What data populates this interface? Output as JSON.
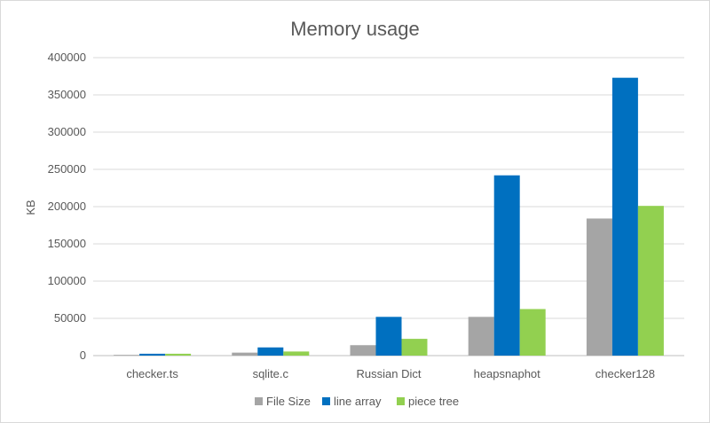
{
  "chart_data": {
    "type": "bar",
    "title": "Memory usage",
    "xlabel": "",
    "ylabel": "KB",
    "ylim": [
      0,
      400000
    ],
    "yticks": [
      0,
      50000,
      100000,
      150000,
      200000,
      250000,
      300000,
      350000,
      400000
    ],
    "ytick_labels": [
      "0",
      "50000",
      "100000",
      "150000",
      "200000",
      "250000",
      "300000",
      "350000",
      "400000"
    ],
    "grid": true,
    "legend_position": "bottom",
    "categories": [
      "checker.ts",
      "sqlite.c",
      "Russian Dict",
      "heapsnaphot",
      "checker128"
    ],
    "series": [
      {
        "name": "File Size",
        "color": "#a5a5a5",
        "values": [
          1000,
          4000,
          14000,
          52000,
          184000
        ]
      },
      {
        "name": "line array",
        "color": "#0070c0",
        "values": [
          2500,
          11000,
          52000,
          242000,
          373000
        ]
      },
      {
        "name": "piece tree",
        "color": "#92d050",
        "values": [
          2500,
          5500,
          22500,
          62500,
          201000
        ]
      }
    ]
  }
}
